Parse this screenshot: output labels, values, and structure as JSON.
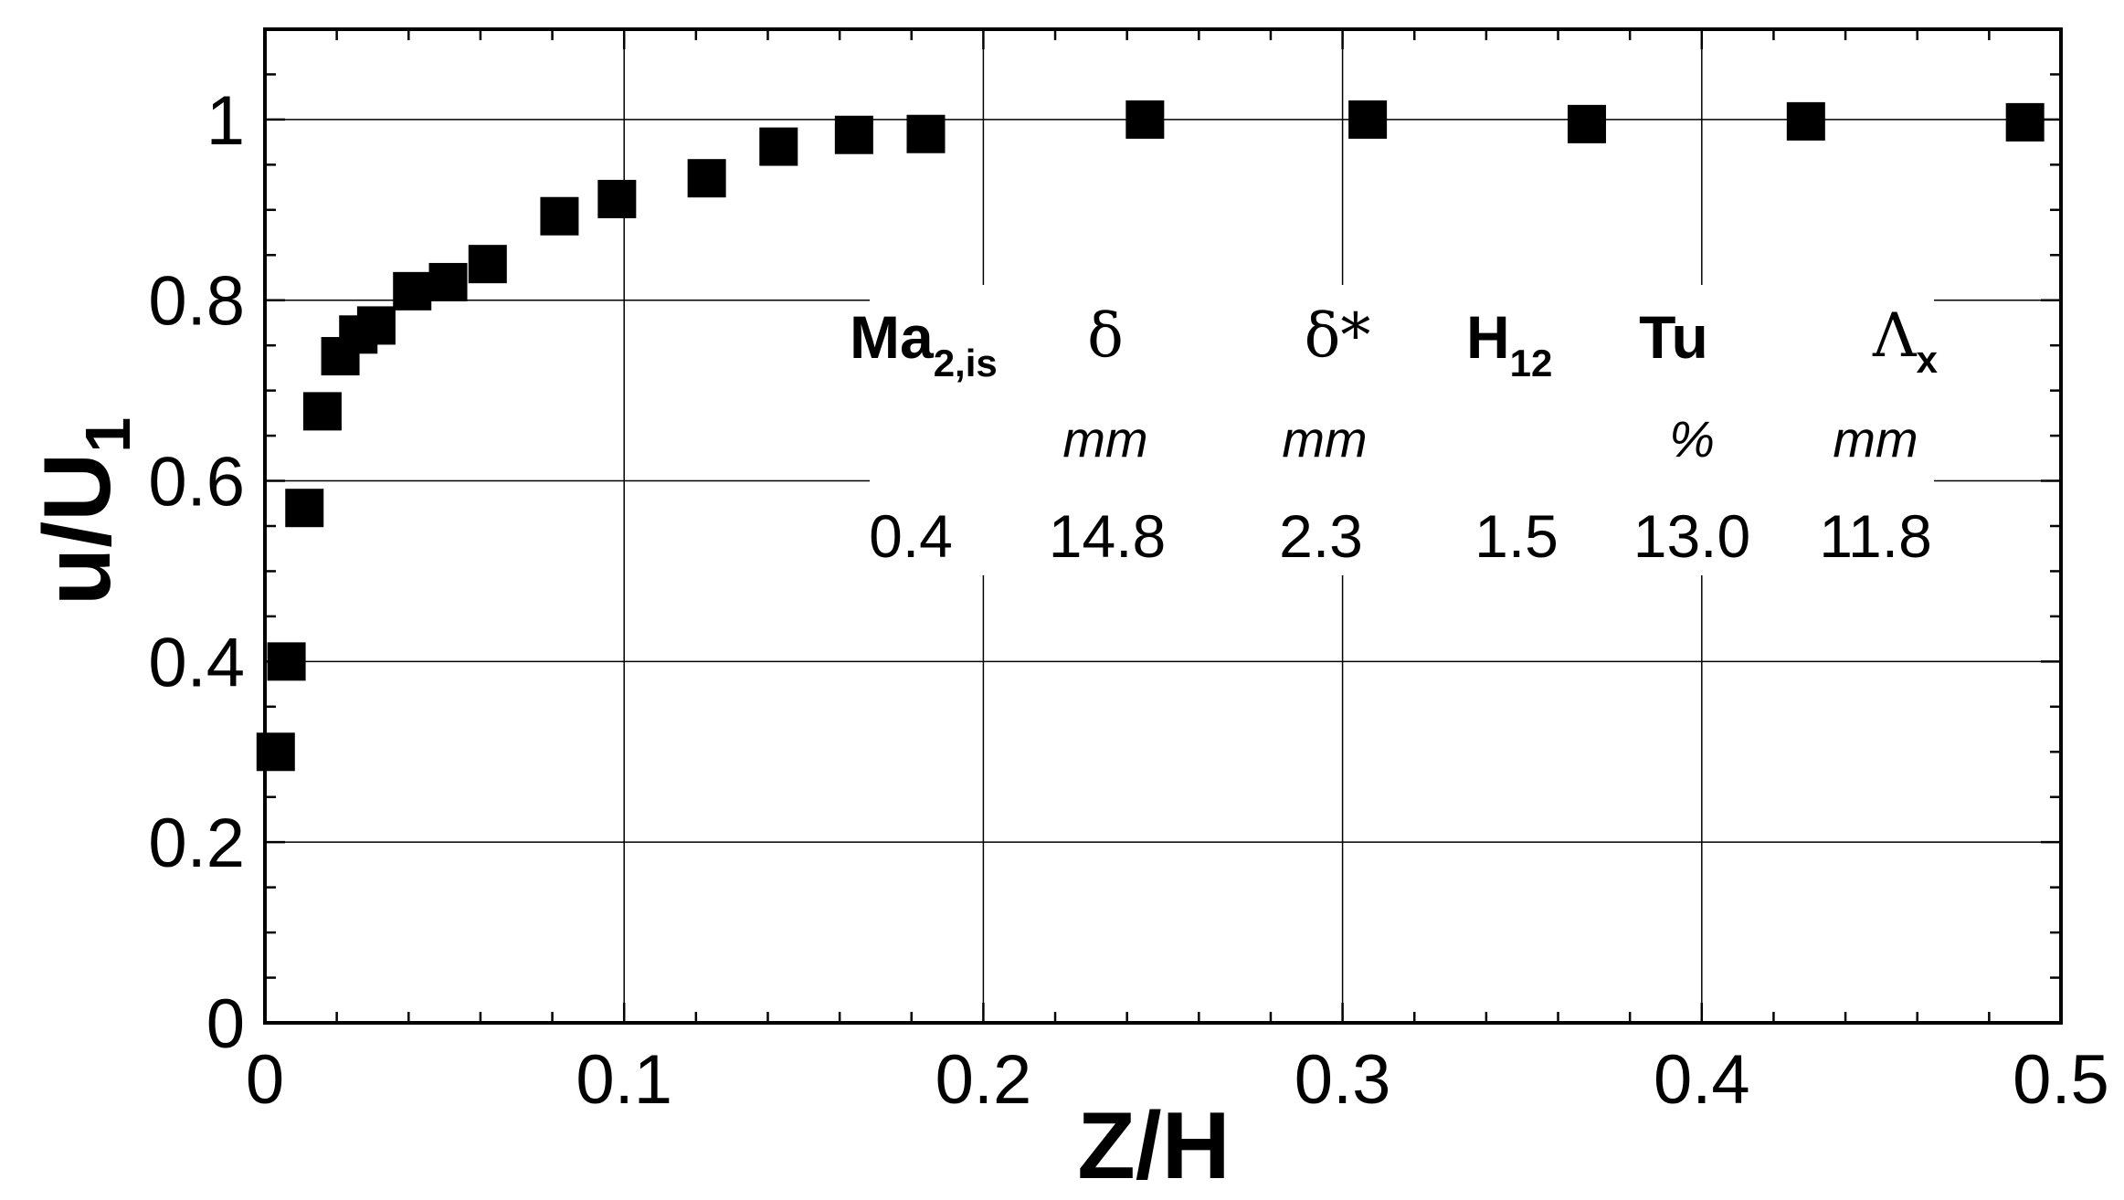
{
  "chart_data": {
    "type": "scatter",
    "xlabel": "Z/H",
    "ylabel_main": "u/U",
    "ylabel_sub": "1",
    "xlim": [
      0,
      0.5
    ],
    "ylim": [
      0,
      1.1
    ],
    "x_ticks": [
      0,
      0.1,
      0.2,
      0.3,
      0.4,
      0.5
    ],
    "x_tick_labels": [
      "0",
      "0.1",
      "0.2",
      "0.3",
      "0.4",
      "0.5"
    ],
    "y_ticks": [
      0,
      0.2,
      0.4,
      0.6,
      0.8,
      1
    ],
    "y_tick_labels": [
      "0",
      "0.2",
      "0.4",
      "0.6",
      "0.8",
      "1"
    ],
    "grid": true,
    "marker": "square",
    "color": "#000000",
    "series": [
      {
        "points": [
          [
            0.003,
            0.3
          ],
          [
            0.006,
            0.4
          ],
          [
            0.011,
            0.57
          ],
          [
            0.016,
            0.677
          ],
          [
            0.021,
            0.738
          ],
          [
            0.026,
            0.762
          ],
          [
            0.031,
            0.772
          ],
          [
            0.041,
            0.81
          ],
          [
            0.051,
            0.82
          ],
          [
            0.062,
            0.84
          ],
          [
            0.082,
            0.893
          ],
          [
            0.098,
            0.912
          ],
          [
            0.123,
            0.935
          ],
          [
            0.143,
            0.97
          ],
          [
            0.164,
            0.983
          ],
          [
            0.184,
            0.984
          ],
          [
            0.245,
            1.0
          ],
          [
            0.307,
            1.0
          ],
          [
            0.368,
            0.995
          ],
          [
            0.429,
            0.998
          ],
          [
            0.49,
            0.997
          ]
        ]
      }
    ],
    "inset_table": {
      "columns": [
        {
          "header": "Ma",
          "header_sub": "2,is",
          "unit": "",
          "value": "0.4"
        },
        {
          "header": "δ",
          "header_sub": "",
          "unit": "mm",
          "value": "14.8"
        },
        {
          "header": "δ*",
          "header_sub": "",
          "unit": "mm",
          "value": "2.3"
        },
        {
          "header": "H",
          "header_sub": "12",
          "unit": "",
          "value": "1.5"
        },
        {
          "header": "Tu",
          "header_sub": "",
          "unit": "%",
          "value": "13.0"
        },
        {
          "header": "Λ",
          "header_sub": "x",
          "unit": "mm",
          "value": "11.8"
        }
      ]
    }
  }
}
